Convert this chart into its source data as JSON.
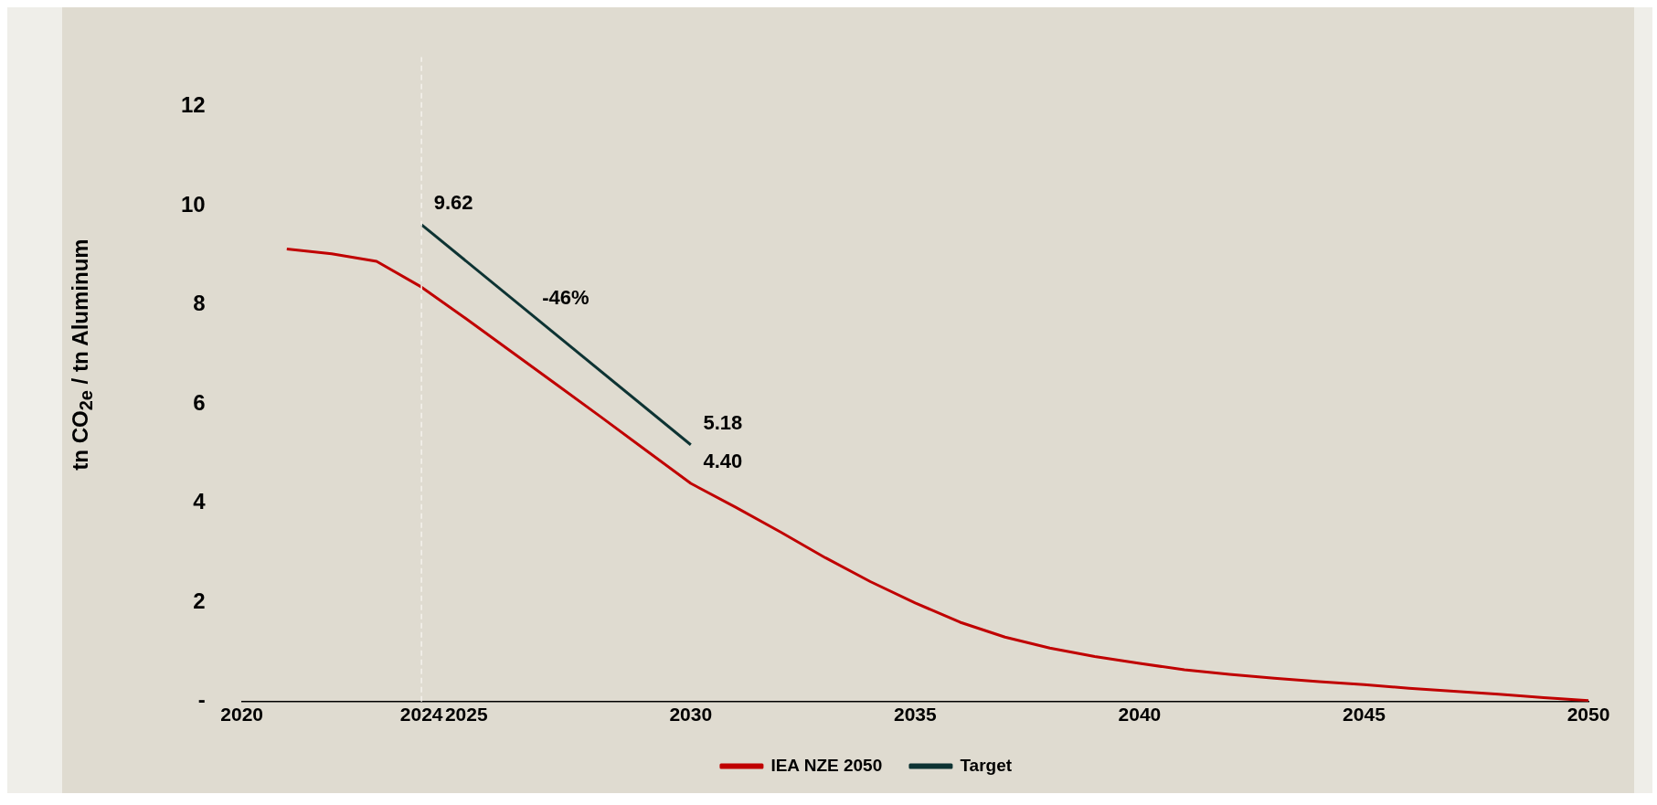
{
  "chart_data": {
    "type": "line",
    "ylabel": "tn CO$_{2e}$ / tn Aluminum",
    "xlim": [
      2020,
      2050
    ],
    "xticks": [
      2020,
      2024,
      2025,
      2030,
      2035,
      2040,
      2045,
      2050
    ],
    "ylim": [
      0,
      13
    ],
    "yticks": [
      {
        "value": 0,
        "label": "-"
      },
      2,
      4,
      6,
      8,
      10,
      12
    ],
    "grid": false,
    "legend": "bottom",
    "marker": "none",
    "line_style": "solid",
    "series": [
      {
        "name": "IEA NZE 2050",
        "color": "#c00000",
        "x": [
          2021,
          2022,
          2023,
          2024,
          2025,
          2026,
          2027,
          2028,
          2029,
          2030,
          2031,
          2032,
          2033,
          2034,
          2035,
          2036,
          2037,
          2038,
          2039,
          2040,
          2041,
          2042,
          2043,
          2044,
          2045,
          2046,
          2047,
          2048,
          2049,
          2050
        ],
        "values": [
          9.13,
          9.03,
          8.88,
          8.36,
          7.72,
          7.06,
          6.4,
          5.74,
          5.07,
          4.4,
          3.92,
          3.42,
          2.9,
          2.42,
          1.99,
          1.6,
          1.3,
          1.08,
          0.91,
          0.77,
          0.64,
          0.55,
          0.47,
          0.4,
          0.34,
          0.27,
          0.21,
          0.15,
          0.08,
          0.02
        ]
      },
      {
        "name": "Target",
        "color": "#0d3333",
        "x": [
          2024,
          2030
        ],
        "values": [
          9.62,
          5.18
        ]
      }
    ],
    "ref_lines": [
      {
        "axis": "x",
        "value": 2024,
        "label": null,
        "color": "#f4f2ec",
        "line_style": "dashed"
      }
    ],
    "annotations": [
      {
        "text": "9.62",
        "x": 2024,
        "y": 9.62
      },
      {
        "text": "5.18",
        "x": 2030,
        "y": 5.18
      },
      {
        "text": "4.40",
        "x": 2030,
        "y": 4.4
      },
      {
        "text": "-46%",
        "x": 2026.5,
        "y": 7.7
      }
    ]
  }
}
